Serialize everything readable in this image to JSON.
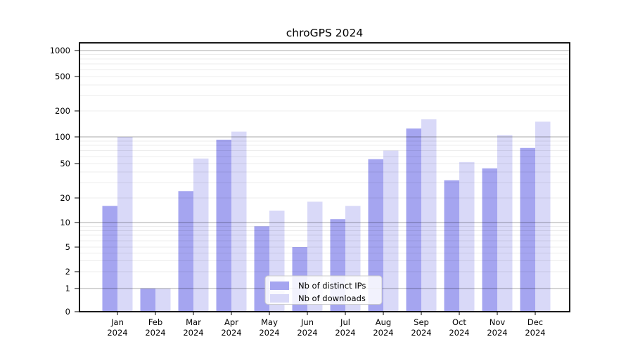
{
  "title": "chroGPS 2024",
  "chart_data": {
    "type": "bar",
    "title": "chroGPS 2024",
    "categories": [
      "Jan",
      "Feb",
      "Mar",
      "Apr",
      "May",
      "Jun",
      "Jul",
      "Aug",
      "Sep",
      "Oct",
      "Nov",
      "Dec"
    ],
    "x_tick_second_line": "2024",
    "series": [
      {
        "name": "Nb of distinct IPs",
        "color": "#a5a5f0",
        "values": [
          16,
          1,
          24,
          93,
          9,
          5,
          11,
          56,
          125,
          32,
          44,
          75
        ]
      },
      {
        "name": "Nb of downloads",
        "color": "#d9d9f8",
        "values": [
          100,
          1,
          57,
          115,
          14,
          18,
          16,
          70,
          160,
          52,
          105,
          150
        ]
      }
    ],
    "xlabel": "",
    "ylabel": "",
    "yscale": "symlog",
    "yticks": [
      0,
      1,
      2,
      5,
      10,
      20,
      50,
      100,
      200,
      500,
      1000
    ],
    "ylim": [
      0,
      1230
    ],
    "grid": true,
    "legend": {
      "position": "lower center",
      "entries": [
        "Nb of distinct IPs",
        "Nb of downloads"
      ]
    }
  }
}
